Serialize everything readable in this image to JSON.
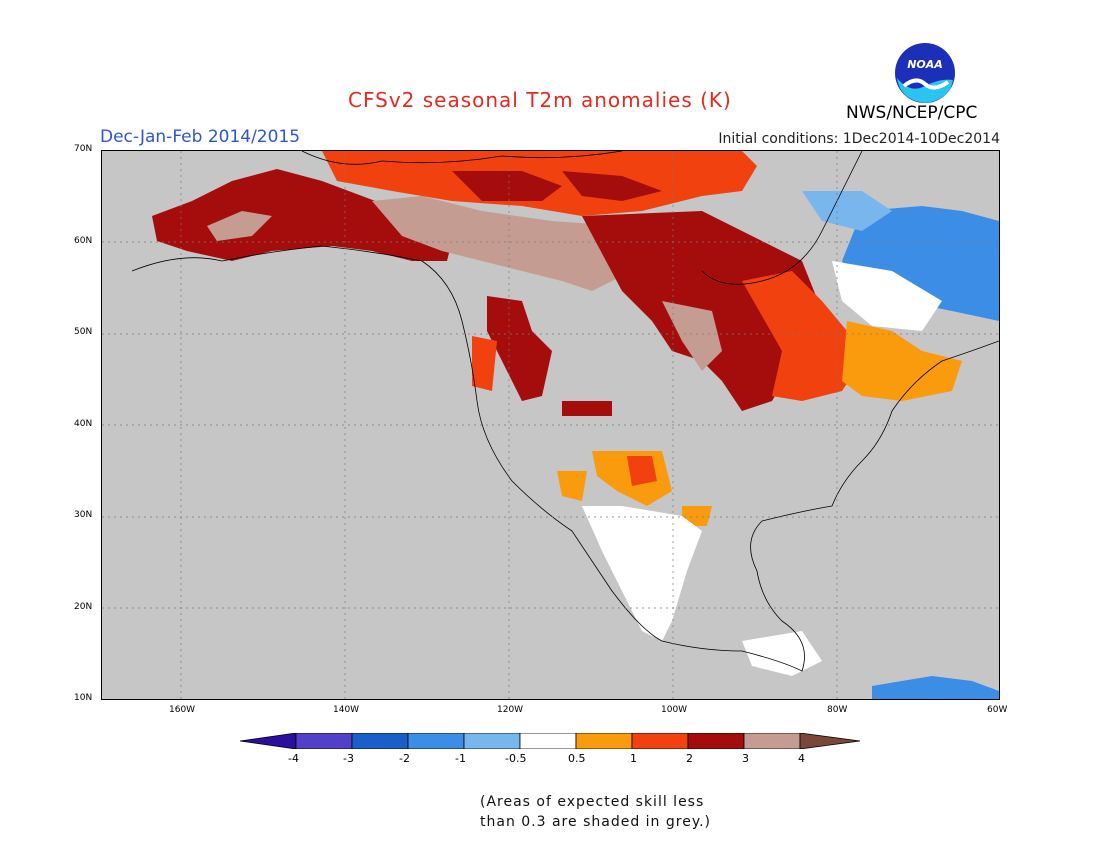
{
  "header": {
    "title": "CFSv2 seasonal T2m anomalies (K)",
    "period": "Dec-Jan-Feb 2014/2015",
    "initial_conditions": "Initial conditions: 1Dec2014-10Dec2014",
    "agency": "NWS/NCEP/CPC",
    "logo_text": "NOAA"
  },
  "map": {
    "latitude_labels": [
      "70N",
      "60N",
      "50N",
      "40N",
      "30N",
      "20N",
      "10N"
    ],
    "longitude_labels": [
      "160W",
      "140W",
      "120W",
      "100W",
      "80W",
      "60W"
    ],
    "background_color": "#c6c6c6"
  },
  "legend": {
    "tick_labels": [
      "-4",
      "-3",
      "-2",
      "-1",
      "-0.5",
      "0.5",
      "1",
      "2",
      "3",
      "4"
    ],
    "colors": [
      "#2a0e9e",
      "#5240c9",
      "#1a5fc9",
      "#3b8de6",
      "#7ab6ee",
      "#ffffff",
      "#f99b0d",
      "#f1410f",
      "#a50d0d",
      "#c59c92",
      "#79483a"
    ]
  },
  "note": {
    "line1": "(Areas of expected skill less",
    "line2": "than 0.3 are shaded in grey.)"
  }
}
